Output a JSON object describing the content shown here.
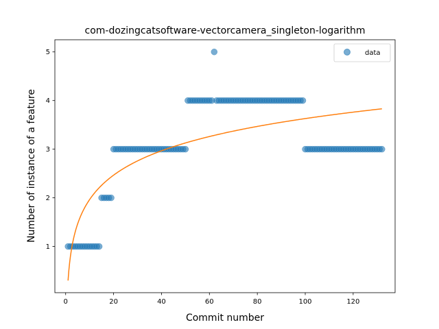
{
  "chart_data": {
    "type": "scatter",
    "title": "com-dozingcatsoftware-vectorcamera_singleton-logarithm",
    "xlabel": "Commit number",
    "ylabel": "Number of instance of a feature",
    "xlim": [
      -4.5,
      137.5
    ],
    "ylim": [
      0.05,
      5.25
    ],
    "xticks": [
      0,
      20,
      40,
      60,
      80,
      100,
      120
    ],
    "yticks": [
      1,
      2,
      3,
      4,
      5
    ],
    "grid": false,
    "legend_position": "top-right",
    "series": [
      {
        "name": "data",
        "kind": "scatter",
        "color": "#1f77b4",
        "runs": [
          {
            "x_start": 1,
            "x_end": 14,
            "y": 1
          },
          {
            "x_start": 15,
            "x_end": 19,
            "y": 2
          },
          {
            "x_start": 20,
            "x_end": 50,
            "y": 3
          },
          {
            "x_start": 51,
            "x_end": 61,
            "y": 4
          },
          {
            "x_start": 62,
            "x_end": 62,
            "y": 5
          },
          {
            "x_start": 63,
            "x_end": 99,
            "y": 4
          },
          {
            "x_start": 100,
            "x_end": 132,
            "y": 3
          }
        ]
      },
      {
        "kind": "line",
        "color": "#ff7f0e",
        "fit": {
          "form": "a + b*ln(x)",
          "a": 0.3,
          "b": 0.723,
          "x_start": 1,
          "x_end": 132
        }
      }
    ]
  }
}
